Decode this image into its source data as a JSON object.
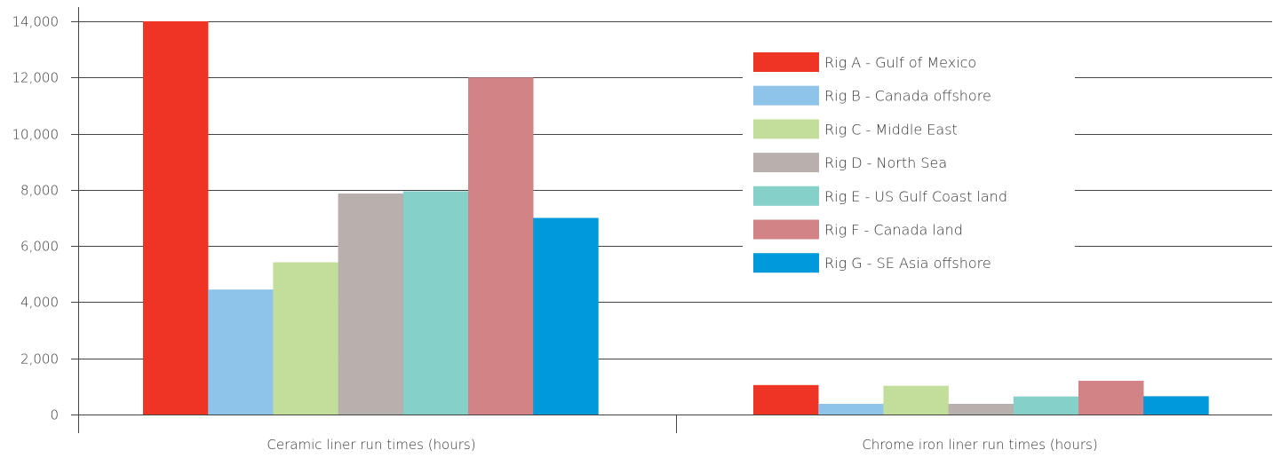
{
  "chart_data": {
    "type": "bar",
    "title": "",
    "xlabel": "",
    "ylabel": "",
    "categories": [
      "Ceramic liner run times (hours)",
      "Chrome iron liner run times (hours)"
    ],
    "ylim": [
      0,
      14000
    ],
    "yticks": [
      0,
      2000,
      4000,
      6000,
      8000,
      10000,
      12000,
      14000
    ],
    "ytick_labels": [
      "0",
      "2,000",
      "4,000",
      "6,000",
      "8,000",
      "10,000",
      "12,000",
      "14,000"
    ],
    "grid": true,
    "legend_position": "top-right",
    "series": [
      {
        "name": "Rig A - Gulf of Mexico",
        "color": "#ee3424",
        "values": [
          14000,
          1050
        ]
      },
      {
        "name": "Rig B - Canada offshore",
        "color": "#8ec3ea",
        "values": [
          4450,
          380
        ]
      },
      {
        "name": "Rig C - Middle East",
        "color": "#c3de9a",
        "values": [
          5420,
          1020
        ]
      },
      {
        "name": "Rig D - North Sea",
        "color": "#b8b0ad",
        "values": [
          7870,
          380
        ]
      },
      {
        "name": "Rig E - US Gulf Coast land",
        "color": "#85d0c8",
        "values": [
          7950,
          640
        ]
      },
      {
        "name": "Rig F - Canada land",
        "color": "#d18386",
        "values": [
          12000,
          1200
        ]
      },
      {
        "name": "Rig G - SE Asia offshore",
        "color": "#0099d9",
        "values": [
          7000,
          650
        ]
      }
    ]
  }
}
